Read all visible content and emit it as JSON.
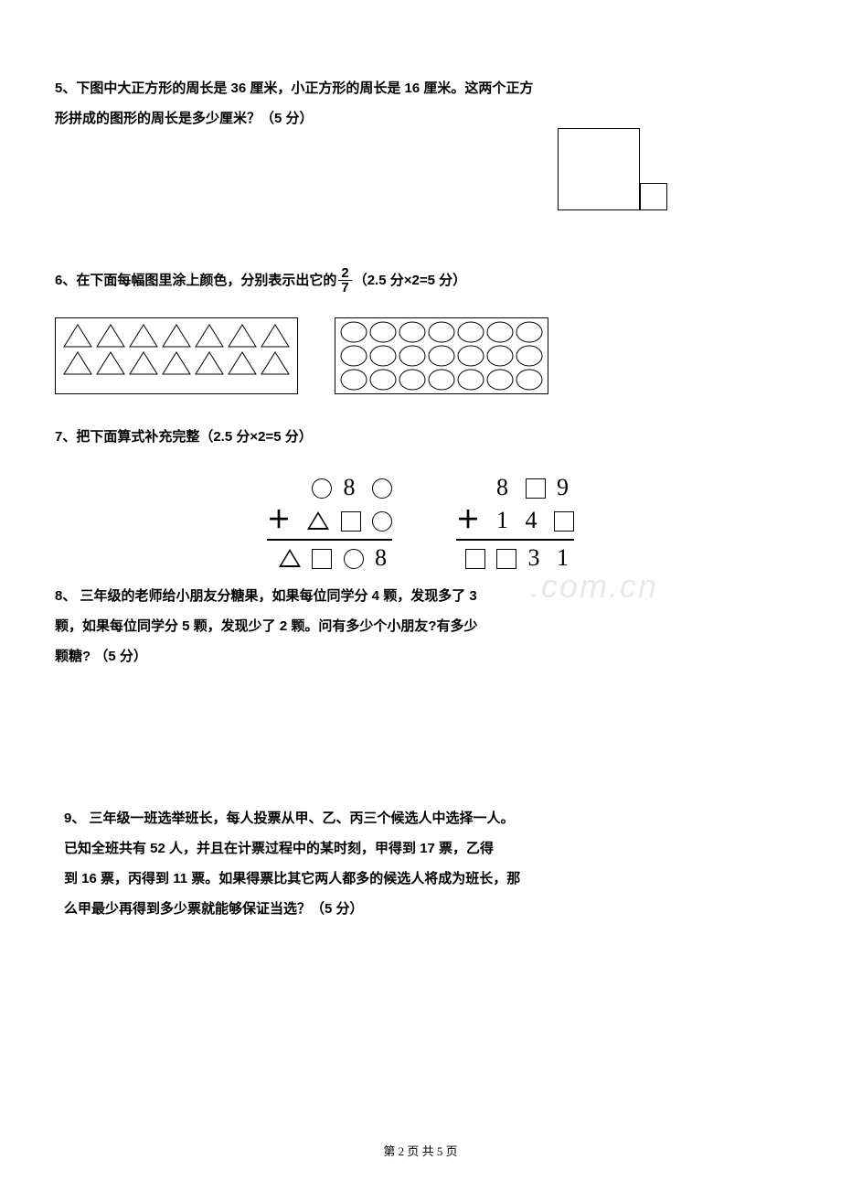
{
  "q5": {
    "label": "5、",
    "text1": "下图中大正方形的周长是 36 厘米，小正方形的周长是 16 厘米。这两个正方",
    "text2": "形拼成的图形的周长是多少厘米？（5 分）"
  },
  "q6": {
    "label": "6、",
    "text_before_frac": "在下面每幅图里涂上颜色，分别表示出它的",
    "frac_num": "2",
    "frac_den": "7",
    "text_after_frac": "（2.5 分×2=5 分）",
    "triangles_per_row": 7,
    "triangle_rows": 2,
    "circles_per_row": 7,
    "circle_rows": 3
  },
  "q7": {
    "label": "7、",
    "text": "把下面算式补充完整（2.5 分×2=5 分）",
    "left": {
      "row1": [
        "circle",
        "8",
        "circle"
      ],
      "row2": [
        "tri",
        "box",
        "circle"
      ],
      "result": [
        "tri",
        "box",
        "circle",
        "8"
      ]
    },
    "right": {
      "row1": [
        "8",
        "box",
        "9"
      ],
      "row2": [
        "1",
        "4",
        "box"
      ],
      "result": [
        "box",
        "box",
        "3",
        "1"
      ]
    }
  },
  "q8": {
    "label": "8、",
    "line1": " 三年级的老师给小朋友分糖果，如果每位同学分 4 颗，发现多了 3",
    "line2": "颗，如果每位同学分 5 颗，发现少了 2 颗。问有多少个小朋友?有多少",
    "line3": "颗糖?  （5 分）"
  },
  "q9": {
    "label": "9、",
    "line1": " 三年级一班选举班长，每人投票从甲、乙、丙三个候选人中选择一人。",
    "line2": "已知全班共有 52 人，并且在计票过程中的某时刻，甲得到 17 票，乙得",
    "line3": "到 16 票，丙得到 11 票。如果得票比其它两人都多的候选人将成为班长，那",
    "line4": "么甲最少再得到多少票就能够保证当选？（5 分）"
  },
  "watermark": ".com.cn",
  "footer": "第 2 页 共 5 页"
}
